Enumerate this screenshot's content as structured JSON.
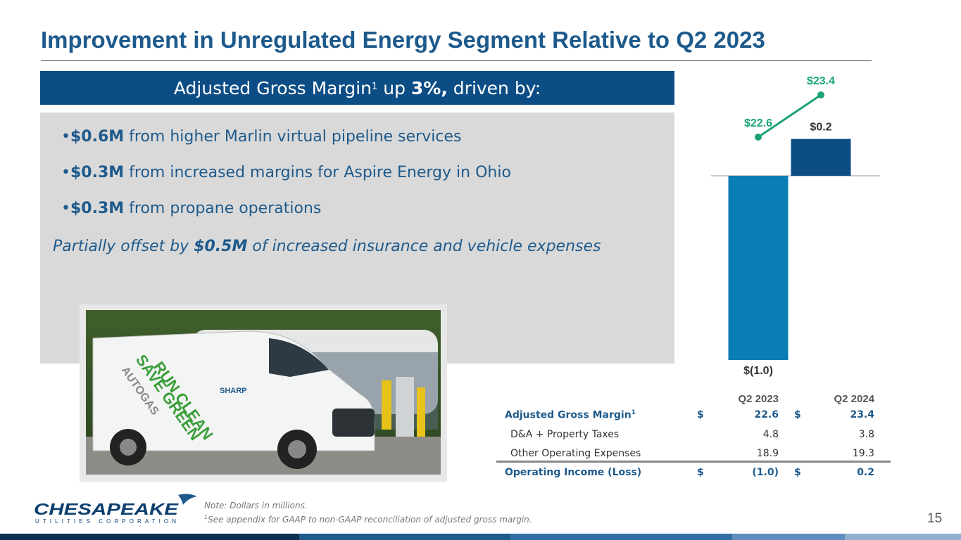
{
  "title": "Improvement in Unregulated Energy Segment Relative to Q2 2023",
  "banner": {
    "text_before": "Adjusted Gross Margin",
    "superscript": "1",
    "text_mid": " up ",
    "highlight": "3%,",
    "text_after": " driven by:"
  },
  "bullets": [
    {
      "marker": "•",
      "amount": "$0.6M",
      "text": " from higher Marlin virtual pipeline services"
    },
    {
      "marker": "•",
      "amount": "$0.3M",
      "text": " from increased margins for Aspire Energy in Ohio"
    },
    {
      "marker": "•",
      "amount": "$0.3M",
      "text": " from propane operations"
    }
  ],
  "offset": {
    "before": "Partially offset by ",
    "amount": "$0.5M",
    "after": " of increased insurance and vehicle expenses"
  },
  "photo": {
    "van_text_1": "RUN CLEAN",
    "van_text_2": "SAVE GREEN",
    "van_text_3": "AUTOGAS",
    "van_text_4": "SHARP"
  },
  "chart_data": {
    "type": "bar",
    "categories": [
      "Q2 2023",
      "Q2 2024"
    ],
    "series": [
      {
        "values": [
          -1.0,
          0.2
        ],
        "labels": [
          "$(1.0)",
          "$0.2"
        ],
        "type": "bar",
        "colors": [
          "#0b7db5",
          "#0d4d85"
        ]
      },
      {
        "values": [
          22.6,
          23.4
        ],
        "labels": [
          "$22.6",
          "$23.4"
        ],
        "type": "line",
        "color": "#1aa37a"
      }
    ]
  },
  "table": {
    "headers": [
      "Q2 2023",
      "Q2 2024"
    ],
    "rows": [
      {
        "label": "Adjusted Gross Margin",
        "sup": "1",
        "cur1": "$",
        "v1": "22.6",
        "cur2": "$",
        "v2": "23.4",
        "style": "blue"
      },
      {
        "label": "D&A + Property Taxes",
        "sup": "",
        "cur1": "",
        "v1": "4.8",
        "cur2": "",
        "v2": "3.8",
        "style": "plain"
      },
      {
        "label": "Other Operating Expenses",
        "sup": "",
        "cur1": "",
        "v1": "18.9",
        "cur2": "",
        "v2": "19.3",
        "style": "plain"
      },
      {
        "label": "Operating Income (Loss)",
        "sup": "",
        "cur1": "$",
        "v1": "(1.0)",
        "cur2": "$",
        "v2": "0.2",
        "style": "blue"
      }
    ]
  },
  "notes": {
    "note1": "Note: Dollars in millions.",
    "note2_sup": "1",
    "note2": "See appendix for GAAP to non-GAAP reconciliation of adjusted gross margin."
  },
  "logo": {
    "name": "CHESAPEAKE",
    "sub": "UTILITIES CORPORATION"
  },
  "page_number": "15",
  "colors": {
    "title": "#1e5a8c",
    "banner": "#0d4d85",
    "bar_2023": "#0b7db5",
    "bar_2024": "#0d4d85",
    "line": "#1aa37a"
  }
}
